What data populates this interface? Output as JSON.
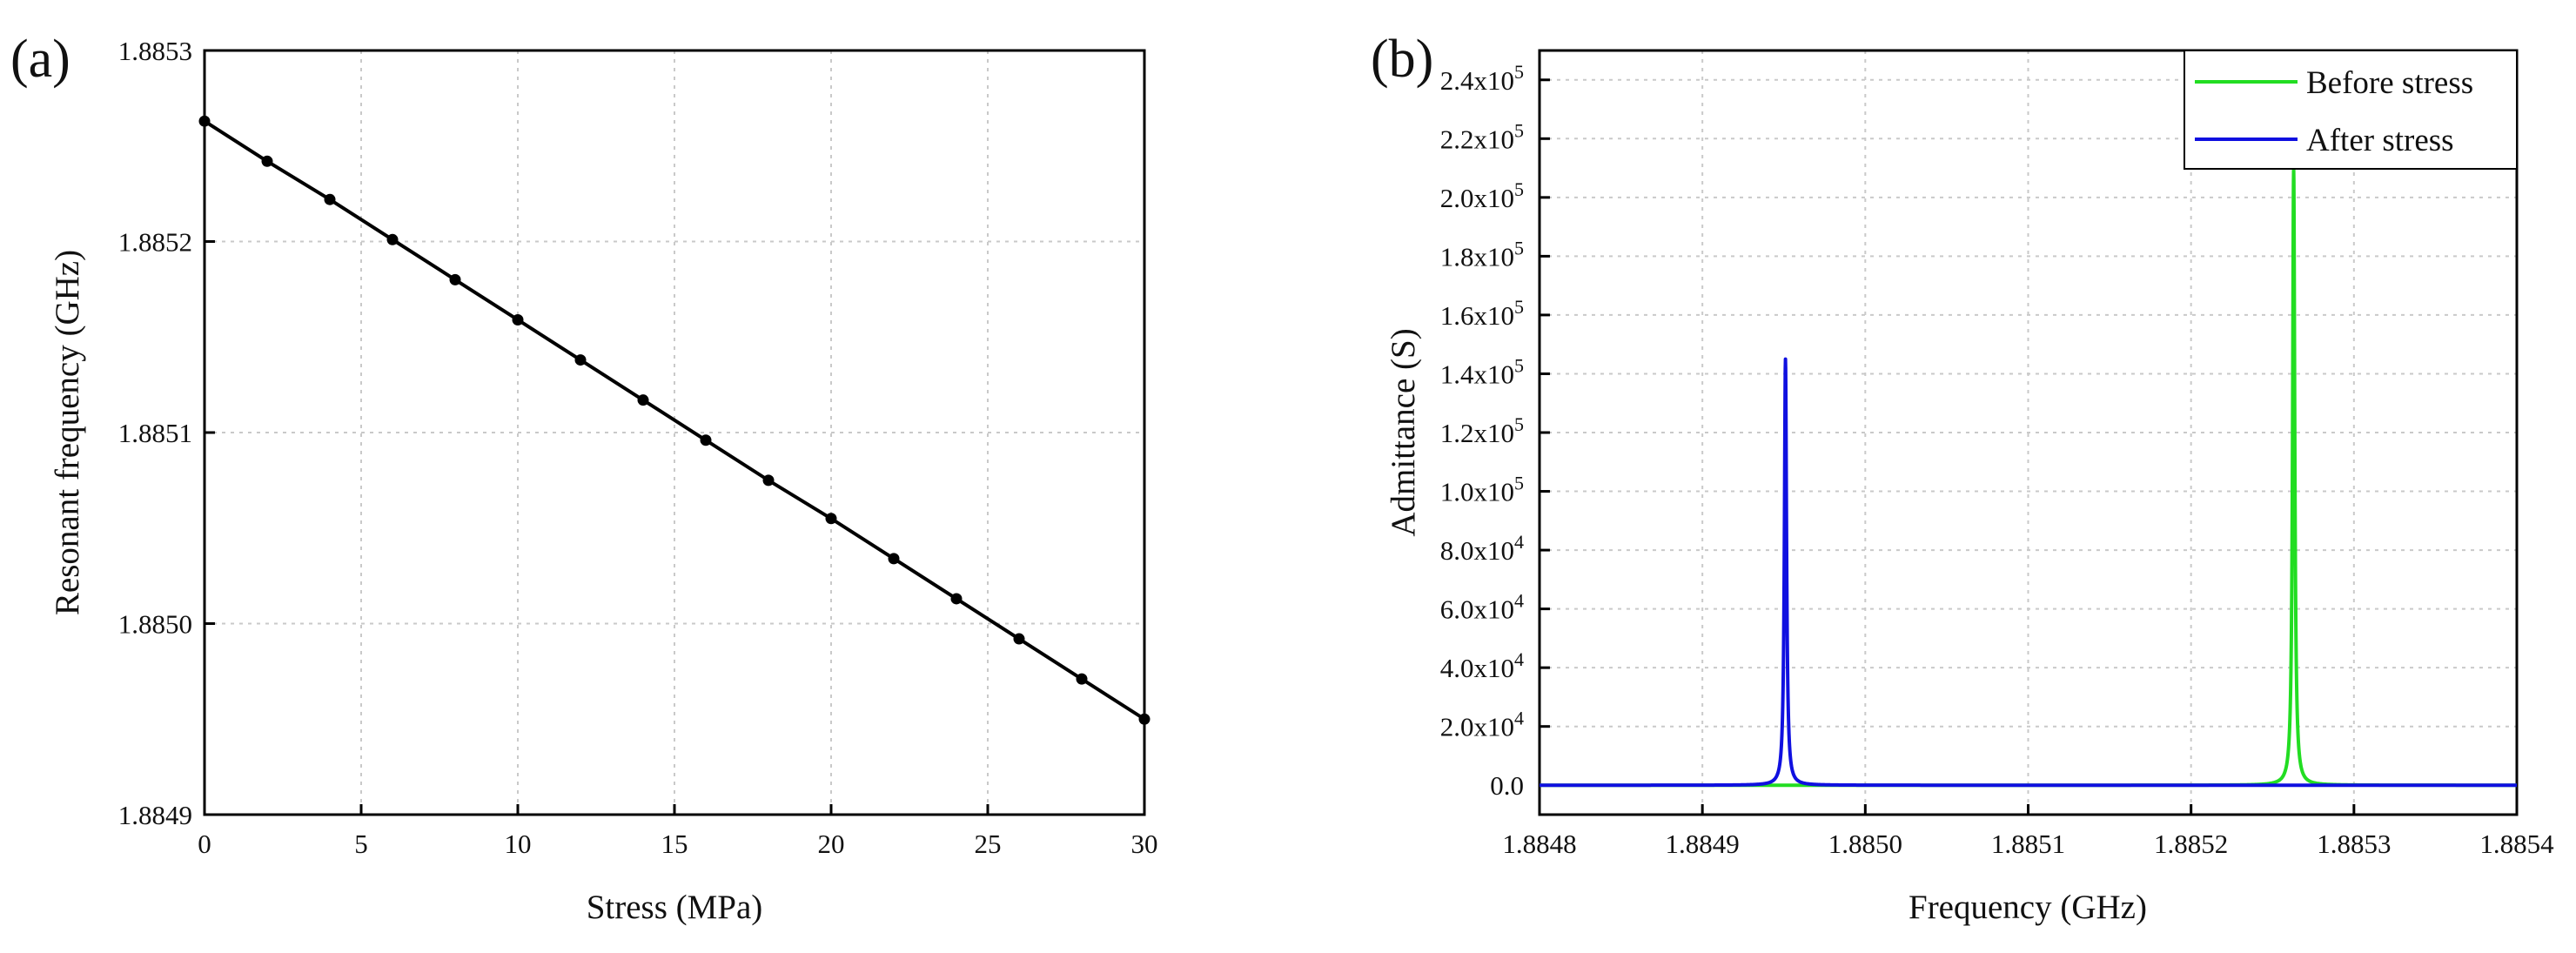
{
  "chart_data": [
    {
      "panel_label": "(a)",
      "type": "line",
      "xlabel": "Stress (MPa)",
      "ylabel": "Resonant frequency (GHz)",
      "xlim": [
        0,
        30
      ],
      "ylim": [
        1.8849,
        1.8853
      ],
      "xticks": [
        "0",
        "5",
        "10",
        "15",
        "20",
        "25",
        "30"
      ],
      "xtick_values": [
        0,
        5,
        10,
        15,
        20,
        25,
        30
      ],
      "yticks": [
        "1.8849",
        "1.8850",
        "1.8851",
        "1.8852",
        "1.8853"
      ],
      "ytick_values": [
        1.8849,
        1.885,
        1.8851,
        1.8852,
        1.8853
      ],
      "grid": true,
      "series": [
        {
          "name": "Resonant frequency",
          "color": "#000000",
          "marker": "circle",
          "x": [
            0,
            2,
            4,
            6,
            8,
            10,
            12,
            14,
            16,
            18,
            20,
            22,
            24,
            26,
            28,
            30
          ],
          "y": [
            1.885263,
            1.885242,
            1.885222,
            1.885201,
            1.88518,
            1.885159,
            1.885138,
            1.885117,
            1.885096,
            1.885075,
            1.885055,
            1.885034,
            1.885013,
            1.884992,
            1.884971,
            1.88495
          ]
        }
      ]
    },
    {
      "panel_label": "(b)",
      "type": "line",
      "xlabel": "Frequency (GHz)",
      "ylabel": "Admittance (S)",
      "xlim": [
        1.8848,
        1.8854
      ],
      "ylim": [
        -10000,
        250000
      ],
      "xticks": [
        "1.8848",
        "1.8849",
        "1.8850",
        "1.8851",
        "1.8852",
        "1.8853",
        "1.8854"
      ],
      "xtick_values": [
        1.8848,
        1.8849,
        1.885,
        1.8851,
        1.8852,
        1.8853,
        1.8854
      ],
      "yticks": [
        {
          "mantissa": "0.0",
          "exp": ""
        },
        {
          "mantissa": "2.0x10",
          "exp": "4"
        },
        {
          "mantissa": "4.0x10",
          "exp": "4"
        },
        {
          "mantissa": "6.0x10",
          "exp": "4"
        },
        {
          "mantissa": "8.0x10",
          "exp": "4"
        },
        {
          "mantissa": "1.0x10",
          "exp": "5"
        },
        {
          "mantissa": "1.2x10",
          "exp": "5"
        },
        {
          "mantissa": "1.4x10",
          "exp": "5"
        },
        {
          "mantissa": "1.6x10",
          "exp": "5"
        },
        {
          "mantissa": "1.8x10",
          "exp": "5"
        },
        {
          "mantissa": "2.0x10",
          "exp": "5"
        },
        {
          "mantissa": "2.2x10",
          "exp": "5"
        },
        {
          "mantissa": "2.4x10",
          "exp": "5"
        }
      ],
      "ytick_values": [
        0,
        20000,
        40000,
        60000,
        80000,
        100000,
        120000,
        140000,
        160000,
        180000,
        200000,
        220000,
        240000
      ],
      "grid": true,
      "legend_position": "top-right",
      "series": [
        {
          "name": "Before stress",
          "color": "#22dd22",
          "peak_x": 1.885263,
          "peak_y": 210000,
          "gamma": 8e-07
        },
        {
          "name": "After stress",
          "color": "#1010e0",
          "peak_x": 1.884951,
          "peak_y": 145000,
          "gamma": 8e-07
        }
      ]
    }
  ]
}
